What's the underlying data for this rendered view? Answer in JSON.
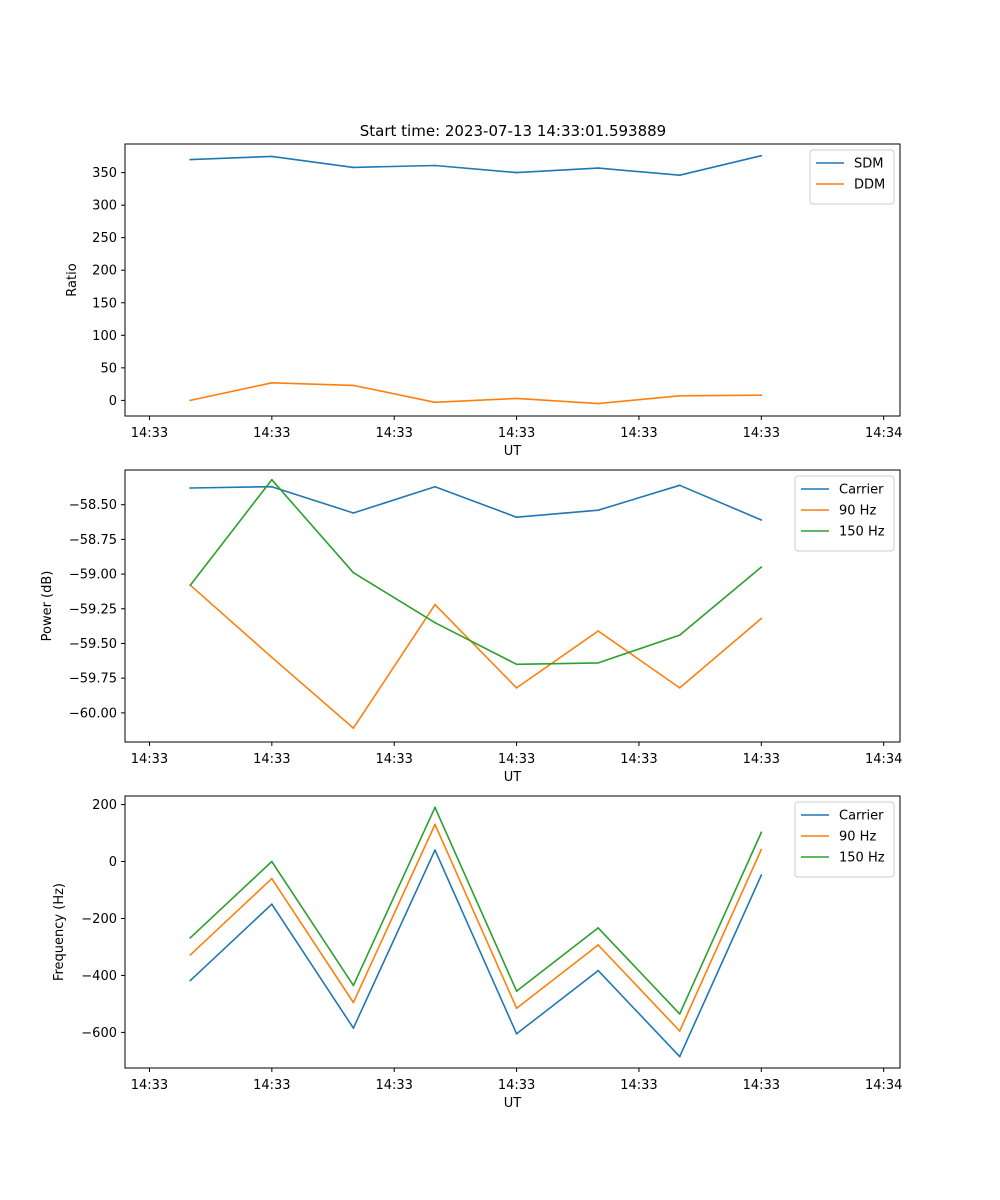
{
  "figure": {
    "title": "Start time: 2023-07-13 14:33:01.593889"
  },
  "chart_data": [
    {
      "type": "line",
      "title": "Start time: 2023-07-13 14:33:01.593889",
      "xlabel": "UT",
      "ylabel": "Ratio",
      "x": [
        1,
        2,
        3,
        4,
        5,
        6,
        7,
        8
      ],
      "xlim": [
        0.2,
        9.7
      ],
      "x_ticks": [
        0.5,
        2.0,
        3.5,
        5.0,
        6.5,
        8.0,
        9.5
      ],
      "x_tick_labels": [
        "14:33",
        "14:33",
        "14:33",
        "14:33",
        "14:33",
        "14:33",
        "14:34"
      ],
      "ylim": [
        -24,
        394
      ],
      "y_ticks": [
        0,
        50,
        100,
        150,
        200,
        250,
        300,
        350
      ],
      "y_tick_labels": [
        "0",
        "50",
        "100",
        "150",
        "200",
        "250",
        "300",
        "350"
      ],
      "legend_position": "top-right",
      "series": [
        {
          "name": "SDM",
          "color": "#1f77b4",
          "values": [
            370,
            375,
            358,
            361,
            350,
            357,
            346,
            376
          ]
        },
        {
          "name": "DDM",
          "color": "#ff7f0e",
          "values": [
            0,
            27,
            23,
            -3,
            3,
            -5,
            7,
            8
          ]
        }
      ]
    },
    {
      "type": "line",
      "title": "",
      "xlabel": "UT",
      "ylabel": "Power (dB)",
      "x": [
        1,
        2,
        3,
        4,
        5,
        6,
        7,
        8
      ],
      "xlim": [
        0.2,
        9.7
      ],
      "x_ticks": [
        0.5,
        2.0,
        3.5,
        5.0,
        6.5,
        8.0,
        9.5
      ],
      "x_tick_labels": [
        "14:33",
        "14:33",
        "14:33",
        "14:33",
        "14:33",
        "14:33",
        "14:34"
      ],
      "ylim": [
        -60.21,
        -58.25
      ],
      "y_ticks": [
        -58.5,
        -58.75,
        -59.0,
        -59.25,
        -59.5,
        -59.75,
        -60.0
      ],
      "y_tick_labels": [
        "−58.50",
        "−58.75",
        "−59.00",
        "−59.25",
        "−59.50",
        "−59.75",
        "−60.00"
      ],
      "legend_position": "top-right",
      "series": [
        {
          "name": "Carrier",
          "color": "#1f77b4",
          "values": [
            -58.38,
            -58.37,
            -58.56,
            -58.37,
            -58.59,
            -58.54,
            -58.36,
            -58.61
          ]
        },
        {
          "name": "90 Hz",
          "color": "#ff7f0e",
          "values": [
            -59.08,
            -59.6,
            -60.11,
            -59.22,
            -59.82,
            -59.41,
            -59.82,
            -59.32
          ]
        },
        {
          "name": "150 Hz",
          "color": "#2ca02c",
          "values": [
            -59.08,
            -58.32,
            -58.99,
            -59.35,
            -59.65,
            -59.64,
            -59.44,
            -58.95
          ]
        }
      ]
    },
    {
      "type": "line",
      "title": "",
      "xlabel": "UT",
      "ylabel": "Frequency (Hz)",
      "x": [
        1,
        2,
        3,
        4,
        5,
        6,
        7,
        8
      ],
      "xlim": [
        0.2,
        9.7
      ],
      "x_ticks": [
        0.5,
        2.0,
        3.5,
        5.0,
        6.5,
        8.0,
        9.5
      ],
      "x_tick_labels": [
        "14:33",
        "14:33",
        "14:33",
        "14:33",
        "14:33",
        "14:33",
        "14:34"
      ],
      "ylim": [
        -725,
        230
      ],
      "y_ticks": [
        200,
        0,
        -200,
        -400,
        -600
      ],
      "y_tick_labels": [
        "200",
        "0",
        "−200",
        "−400",
        "−600"
      ],
      "legend_position": "top-right",
      "series": [
        {
          "name": "Carrier",
          "color": "#1f77b4",
          "values": [
            -418,
            -150,
            -585,
            40,
            -605,
            -383,
            -685,
            -48
          ]
        },
        {
          "name": "90 Hz",
          "color": "#ff7f0e",
          "values": [
            -328,
            -60,
            -495,
            130,
            -515,
            -293,
            -595,
            42
          ]
        },
        {
          "name": "150 Hz",
          "color": "#2ca02c",
          "values": [
            -268,
            0,
            -435,
            190,
            -455,
            -233,
            -535,
            102
          ]
        }
      ]
    }
  ]
}
